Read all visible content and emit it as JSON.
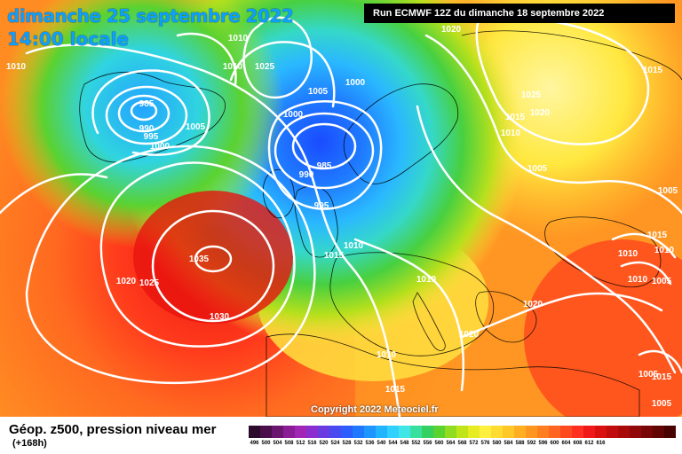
{
  "header": {
    "date_line": "dimanche 25 septembre 2022",
    "time_line": "14:00 locale",
    "run_info": "Run ECMWF 12Z du dimanche 18 septembre 2022"
  },
  "map": {
    "copyright": "Copyright 2022 Meteociel.fr",
    "pressure_labels": [
      {
        "text": "1010"
      },
      {
        "text": "1010"
      },
      {
        "text": "1020"
      },
      {
        "text": "1010"
      },
      {
        "text": "1025"
      },
      {
        "text": "1015"
      },
      {
        "text": "985"
      },
      {
        "text": "990"
      },
      {
        "text": "995"
      },
      {
        "text": "1000"
      },
      {
        "text": "1005"
      },
      {
        "text": "1005"
      },
      {
        "text": "1000"
      },
      {
        "text": "1000"
      },
      {
        "text": "1025"
      },
      {
        "text": "1020"
      },
      {
        "text": "1015"
      },
      {
        "text": "1010"
      },
      {
        "text": "985"
      },
      {
        "text": "990"
      },
      {
        "text": "995"
      },
      {
        "text": "1005"
      },
      {
        "text": "1005"
      },
      {
        "text": "1035"
      },
      {
        "text": "1020"
      },
      {
        "text": "1025"
      },
      {
        "text": "1030"
      },
      {
        "text": "1010"
      },
      {
        "text": "1015"
      },
      {
        "text": "1010"
      },
      {
        "text": "1015"
      },
      {
        "text": "1010"
      },
      {
        "text": "1010"
      },
      {
        "text": "1005"
      },
      {
        "text": "1020"
      },
      {
        "text": "1020"
      },
      {
        "text": "1010"
      },
      {
        "text": "1015"
      },
      {
        "text": "1010"
      },
      {
        "text": "1005"
      },
      {
        "text": "1015"
      },
      {
        "text": "1005"
      }
    ]
  },
  "legend": {
    "title": "Géop. z500, pression niveau mer",
    "subtitle": "(+168h)",
    "colors": [
      "#2b0a2b",
      "#4a0f4a",
      "#6a1570",
      "#8a1d95",
      "#a226b5",
      "#8a2ed0",
      "#6a3be0",
      "#4a4af0",
      "#2d5cff",
      "#1f78ff",
      "#1f95ff",
      "#22b4ff",
      "#30d0ff",
      "#40e6e6",
      "#38e0a0",
      "#34d060",
      "#5ad230",
      "#90dc20",
      "#c0e41a",
      "#e6ec20",
      "#fff040",
      "#ffdc30",
      "#ffc828",
      "#ffae20",
      "#ff9620",
      "#ff7e20",
      "#ff6420",
      "#ff4a20",
      "#ff3020",
      "#f01818",
      "#d81010",
      "#c00c0c",
      "#a80a0a",
      "#900808",
      "#780606",
      "#600404",
      "#480202"
    ],
    "ticks": [
      "496",
      "500",
      "504",
      "508",
      "512",
      "516",
      "520",
      "524",
      "528",
      "532",
      "536",
      "540",
      "544",
      "548",
      "552",
      "556",
      "560",
      "564",
      "568",
      "572",
      "576",
      "580",
      "584",
      "588",
      "592",
      "596",
      "600",
      "604",
      "608",
      "612",
      "616"
    ]
  }
}
